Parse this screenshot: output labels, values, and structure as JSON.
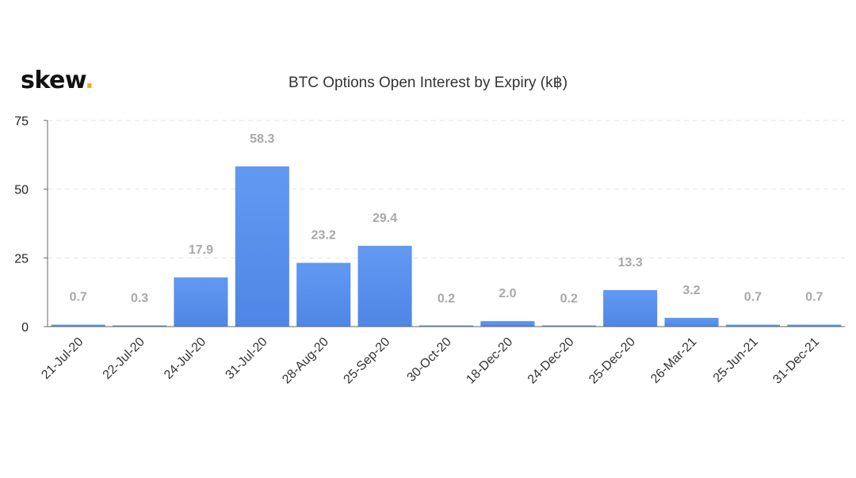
{
  "brand": {
    "name": "skew",
    "dot": "."
  },
  "colors": {
    "bar_top": "#6199f2",
    "bar_bottom": "#4f86e6",
    "grid": "#e3e3e3",
    "axis": "#666666",
    "brand_dot": "#f5a623"
  },
  "chart_data": {
    "type": "bar",
    "title": "BTC Options Open Interest by Expiry (k฿)",
    "xlabel": "",
    "ylabel": "",
    "ylim": [
      0,
      75
    ],
    "yticks": [
      "0",
      "25",
      "50",
      "75"
    ],
    "grid": true,
    "categories": [
      "21-Jul-20",
      "22-Jul-20",
      "24-Jul-20",
      "31-Jul-20",
      "28-Aug-20",
      "25-Sep-20",
      "30-Oct-20",
      "18-Dec-20",
      "24-Dec-20",
      "25-Dec-20",
      "26-Mar-21",
      "25-Jun-21",
      "31-Dec-21"
    ],
    "values": [
      0.7,
      0.3,
      17.9,
      58.3,
      23.2,
      29.4,
      0.2,
      2.0,
      0.2,
      13.3,
      3.2,
      0.7,
      0.7
    ],
    "data_labels": [
      "0.7",
      "0.3",
      "17.9",
      "58.3",
      "23.2",
      "29.4",
      "0.2",
      "2.0",
      "0.2",
      "13.3",
      "3.2",
      "0.7",
      "0.7"
    ]
  }
}
